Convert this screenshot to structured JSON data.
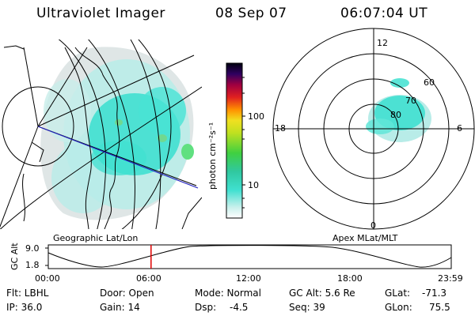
{
  "header": {
    "title": "Ultraviolet Imager",
    "date": "08 Sep 07",
    "time": "06:07:04 UT"
  },
  "colorbar": {
    "unit_label": "photon cm⁻²s⁻¹",
    "tick_100": "100",
    "tick_10": "10"
  },
  "geo_panel": {
    "caption": "Geographic Lat/Lon"
  },
  "polar_panel": {
    "caption": "Apex MLat/MLT",
    "mlt_labels": {
      "top": "12",
      "left": "18",
      "right": "6",
      "bottom": "0"
    },
    "lat_labels": [
      "60",
      "70",
      "80"
    ]
  },
  "altitude_strip": {
    "axis_title": "GC Alt",
    "y_max": "9.0",
    "y_min": "1.8",
    "time_ticks": [
      "00:00",
      "06:00",
      "12:00",
      "18:00",
      "23:59"
    ],
    "current_time_marker_hours": 6.12
  },
  "info": {
    "filter": "Flt: LBHL",
    "ip": "IP: 36.0",
    "door": "Door: Open",
    "gain": "Gain: 14",
    "mode": "Mode: Normal",
    "dsp_label": "Dsp:",
    "dsp_value": "-4.5",
    "gc_alt": "GC Alt: 5.6 Re",
    "seq": "Seq: 39",
    "glat_label": "GLat:",
    "glat_value": "-71.3",
    "glon_label": "GLon:",
    "glon_value": "75.5"
  },
  "colors": {
    "aurora_cyan": "#40e0d0",
    "aurora_pale": "#b8ece8",
    "noise_gray": "#d8dcdc",
    "marker_red": "#e00000",
    "track_blue": "#2020c0"
  }
}
